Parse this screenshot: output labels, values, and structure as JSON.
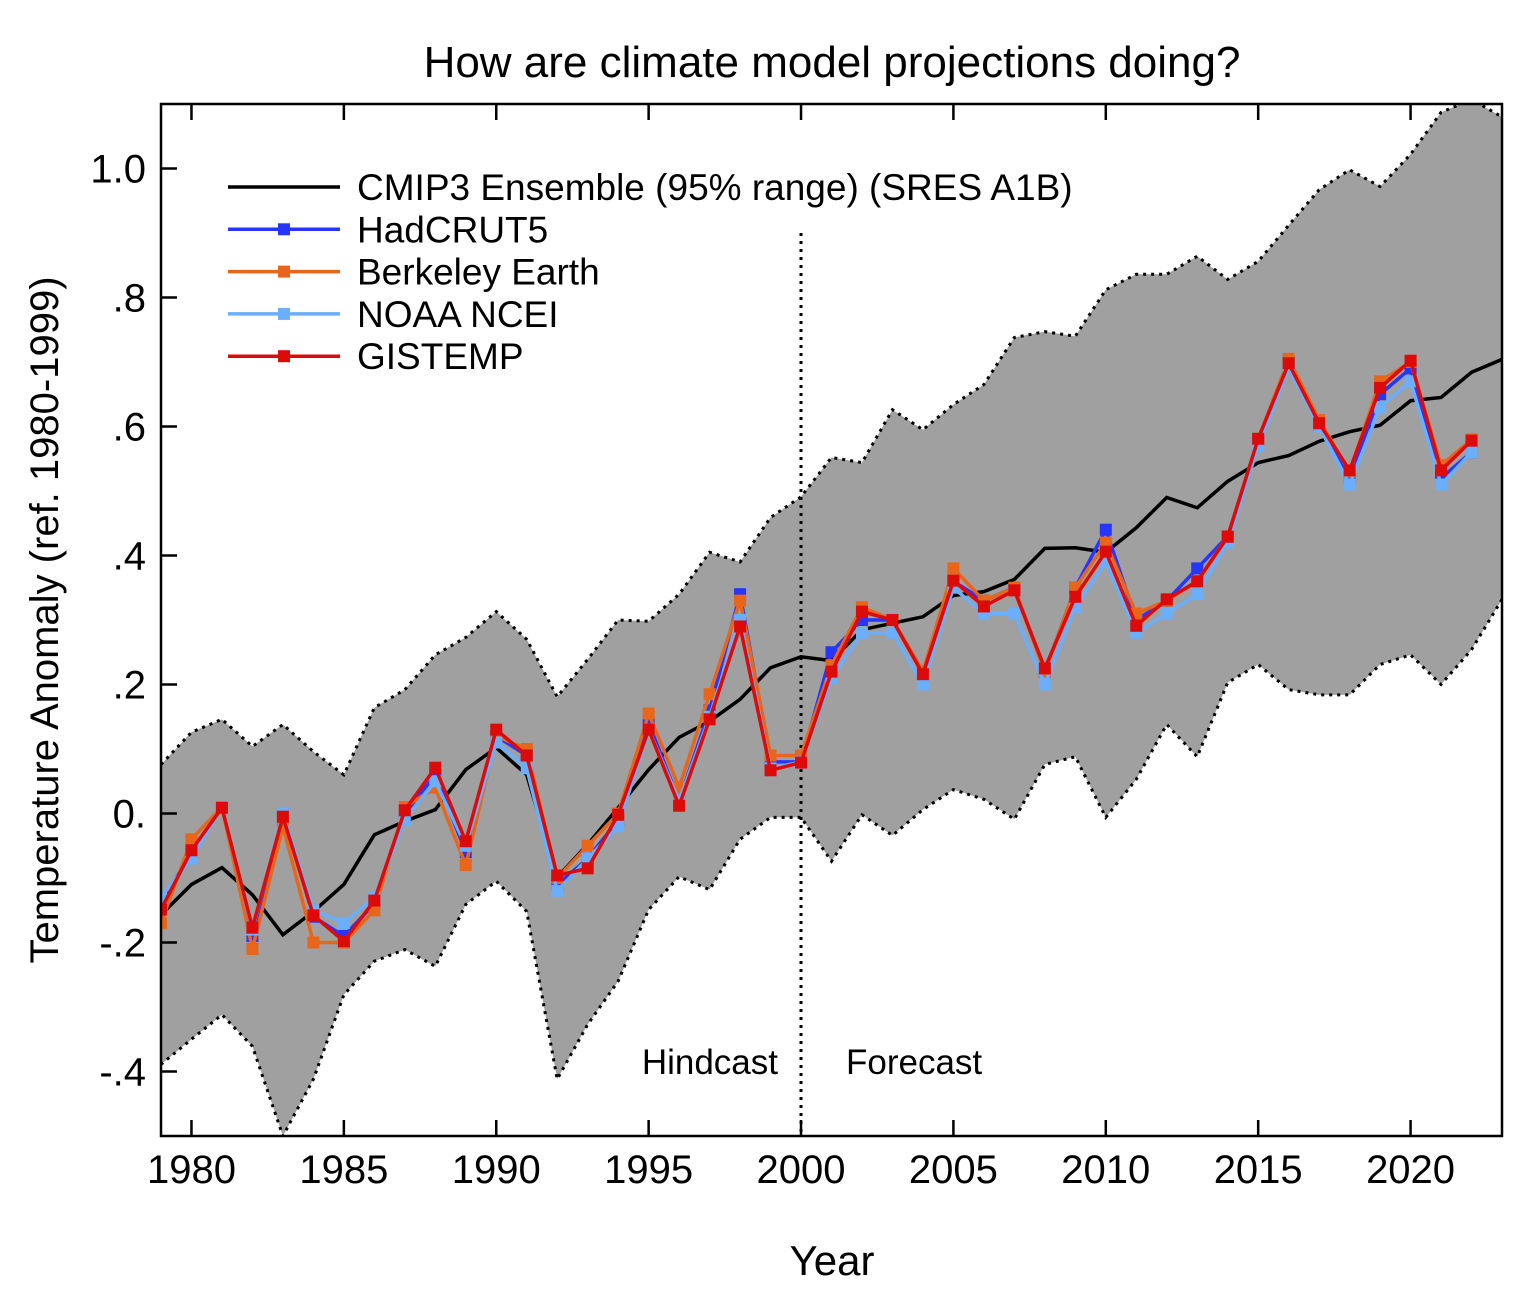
{
  "chart_data": {
    "type": "line",
    "title": "How are climate model projections doing?",
    "xlabel": "Year",
    "ylabel": "Temperature Anomaly (ref. 1980-1999)",
    "xlim": [
      1979,
      2023
    ],
    "ylim": [
      -0.5,
      1.1
    ],
    "x_ticks": [
      1980,
      1985,
      1990,
      1995,
      2000,
      2005,
      2010,
      2015,
      2020
    ],
    "x_tick_labels": [
      "1980",
      "1985",
      "1990",
      "1995",
      "2000",
      "2005",
      "2010",
      "2015",
      "2020"
    ],
    "y_ticks": [
      -0.4,
      -0.2,
      0,
      0.2,
      0.4,
      0.6,
      0.8,
      1.0
    ],
    "y_tick_labels": [
      "-.4",
      "-.2",
      "0.",
      ".2",
      ".4",
      ".6",
      ".8",
      "1.0"
    ],
    "grid": false,
    "legend_position": "top-left",
    "annotations": {
      "hindcast": "Hindcast",
      "forecast": "Forecast",
      "divider_year": 2000
    },
    "ensemble": {
      "name": "CMIP3 Ensemble (95% range) (SRES A1B)",
      "color": "#000000",
      "band_color": "#a0a0a0",
      "years": [
        1979,
        1980,
        1981,
        1982,
        1983,
        1984,
        1985,
        1986,
        1987,
        1988,
        1989,
        1990,
        1991,
        1992,
        1993,
        1994,
        1995,
        1996,
        1997,
        1998,
        1999,
        2000,
        2001,
        2002,
        2003,
        2004,
        2005,
        2006,
        2007,
        2008,
        2009,
        2010,
        2011,
        2012,
        2013,
        2014,
        2015,
        2016,
        2017,
        2018,
        2019,
        2020,
        2021,
        2022,
        2023
      ],
      "mean": [
        -0.157,
        -0.11,
        -0.084,
        -0.126,
        -0.188,
        -0.152,
        -0.11,
        -0.033,
        -0.012,
        0.006,
        0.068,
        0.102,
        0.06,
        -0.099,
        -0.048,
        0.009,
        0.068,
        0.118,
        0.143,
        0.177,
        0.226,
        0.243,
        0.237,
        0.285,
        0.295,
        0.305,
        0.338,
        0.344,
        0.363,
        0.411,
        0.412,
        0.405,
        0.443,
        0.49,
        0.474,
        0.515,
        0.544,
        0.555,
        0.577,
        0.592,
        0.602,
        0.64,
        0.645,
        0.684,
        0.704
      ],
      "upper": [
        0.076,
        0.126,
        0.146,
        0.104,
        0.138,
        0.096,
        0.06,
        0.164,
        0.192,
        0.246,
        0.273,
        0.313,
        0.27,
        0.181,
        0.239,
        0.3,
        0.298,
        0.34,
        0.405,
        0.39,
        0.459,
        0.491,
        0.552,
        0.544,
        0.626,
        0.595,
        0.634,
        0.665,
        0.738,
        0.747,
        0.74,
        0.812,
        0.836,
        0.836,
        0.864,
        0.828,
        0.856,
        0.912,
        0.967,
        0.998,
        0.972,
        1.022,
        1.087,
        1.107,
        1.08
      ],
      "lower": [
        -0.389,
        -0.35,
        -0.312,
        -0.361,
        -0.5,
        -0.412,
        -0.281,
        -0.229,
        -0.211,
        -0.237,
        -0.141,
        -0.105,
        -0.152,
        -0.412,
        -0.327,
        -0.26,
        -0.149,
        -0.098,
        -0.118,
        -0.04,
        -0.006,
        -0.006,
        -0.074,
        -0.002,
        -0.034,
        0.006,
        0.037,
        0.022,
        -0.009,
        0.076,
        0.088,
        -0.006,
        0.053,
        0.138,
        0.088,
        0.203,
        0.231,
        0.192,
        0.184,
        0.184,
        0.231,
        0.246,
        0.2,
        0.254,
        0.332
      ]
    },
    "obs_years": [
      1979,
      1980,
      1981,
      1982,
      1983,
      1984,
      1985,
      1986,
      1987,
      1988,
      1989,
      1990,
      1991,
      1992,
      1993,
      1994,
      1995,
      1996,
      1997,
      1998,
      1999,
      2000,
      2001,
      2002,
      2003,
      2004,
      2005,
      2006,
      2007,
      2008,
      2009,
      2010,
      2011,
      2012,
      2013,
      2014,
      2015,
      2016,
      2017,
      2018,
      2019,
      2020,
      2021,
      2022
    ],
    "series": [
      {
        "name": "HadCRUT5",
        "color": "#2436ff",
        "values": [
          -0.14,
          -0.06,
          0.01,
          -0.19,
          0.0,
          -0.16,
          -0.19,
          -0.14,
          0.0,
          0.06,
          -0.06,
          0.12,
          0.09,
          -0.11,
          -0.07,
          -0.01,
          0.14,
          0.02,
          0.16,
          0.34,
          0.08,
          0.08,
          0.25,
          0.3,
          0.3,
          0.22,
          0.36,
          0.33,
          0.35,
          0.22,
          0.35,
          0.44,
          0.3,
          0.33,
          0.38,
          0.43,
          0.58,
          0.7,
          0.6,
          0.52,
          0.65,
          0.69,
          0.52,
          0.56
        ]
      },
      {
        "name": "Berkeley Earth",
        "color": "#e8661a",
        "values": [
          -0.17,
          -0.04,
          0.01,
          -0.21,
          -0.02,
          -0.2,
          -0.2,
          -0.15,
          0.01,
          0.04,
          -0.08,
          0.12,
          0.1,
          -0.1,
          -0.05,
          0.0,
          0.155,
          0.04,
          0.185,
          0.33,
          0.09,
          0.09,
          0.23,
          0.32,
          0.3,
          0.22,
          0.38,
          0.33,
          0.35,
          0.22,
          0.35,
          0.42,
          0.31,
          0.33,
          0.36,
          0.43,
          0.58,
          0.705,
          0.61,
          0.53,
          0.67,
          0.7,
          0.54,
          0.58
        ]
      },
      {
        "name": "NOAA NCEI",
        "color": "#6aaefc",
        "values": [
          -0.13,
          -0.07,
          0.01,
          -0.18,
          0.0,
          -0.15,
          -0.17,
          -0.13,
          -0.01,
          0.05,
          -0.05,
          0.11,
          0.07,
          -0.12,
          -0.07,
          -0.02,
          0.13,
          0.02,
          0.15,
          0.3,
          0.07,
          0.08,
          0.21,
          0.28,
          0.28,
          0.2,
          0.35,
          0.31,
          0.31,
          0.2,
          0.32,
          0.39,
          0.28,
          0.31,
          0.34,
          0.42,
          0.57,
          0.69,
          0.6,
          0.51,
          0.63,
          0.67,
          0.51,
          0.56
        ]
      },
      {
        "name": "GISTEMP",
        "color": "#dd0a0a",
        "values": [
          -0.149,
          -0.057,
          0.009,
          -0.177,
          -0.005,
          -0.158,
          -0.198,
          -0.135,
          0.005,
          0.071,
          -0.043,
          0.13,
          0.09,
          -0.096,
          -0.085,
          -0.002,
          0.13,
          0.012,
          0.146,
          0.29,
          0.067,
          0.079,
          0.22,
          0.313,
          0.3,
          0.216,
          0.361,
          0.321,
          0.346,
          0.225,
          0.336,
          0.406,
          0.291,
          0.332,
          0.36,
          0.429,
          0.581,
          0.698,
          0.605,
          0.532,
          0.66,
          0.702,
          0.532,
          0.578
        ]
      }
    ]
  }
}
